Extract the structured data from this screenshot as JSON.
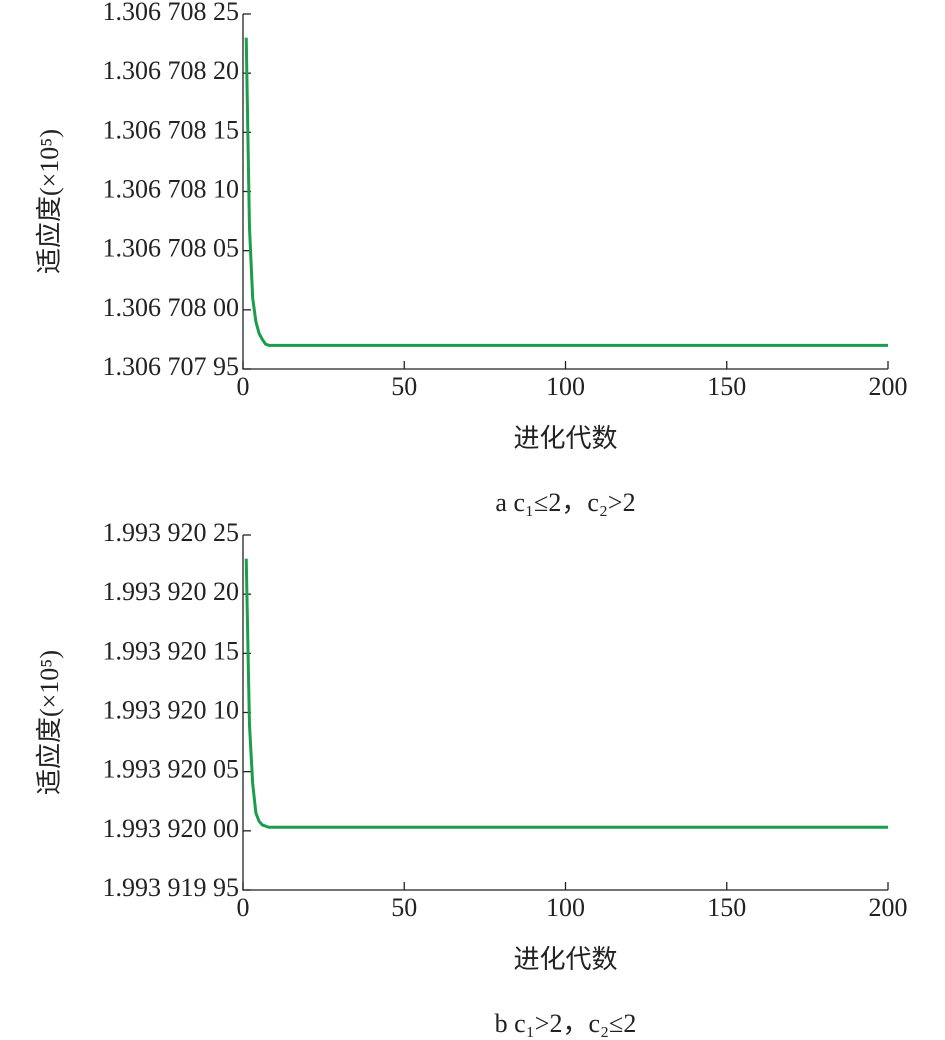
{
  "chart_data": [
    {
      "type": "line",
      "ylabel": "适应度(×10⁵)",
      "xlabel": "进化代数",
      "caption": "a c₁≤2，c₂>2",
      "x": [
        1,
        2,
        3,
        4,
        5,
        6,
        7,
        8,
        10,
        200
      ],
      "series": [
        {
          "color": "#1a9e4a",
          "values": [
            1.30670823,
            1.30670807,
            1.30670801,
            1.30670799,
            1.30670798,
            1.306707975,
            1.306707971,
            1.30670797,
            1.30670797,
            1.30670797
          ]
        }
      ],
      "xlim": [
        0,
        200
      ],
      "xticks": [
        0,
        50,
        100,
        150,
        200
      ],
      "ylim": [
        1.30670795,
        1.30670825
      ],
      "yticks": [
        {
          "value": 1.30670795,
          "label": "1.306 707 95"
        },
        {
          "value": 1.306708,
          "label": "1.306 708 00"
        },
        {
          "value": 1.30670805,
          "label": "1.306 708 05"
        },
        {
          "value": 1.3067081,
          "label": "1.306 708 10"
        },
        {
          "value": 1.30670815,
          "label": "1.306 708 15"
        },
        {
          "value": 1.3067082,
          "label": "1.306 708 20"
        },
        {
          "value": 1.30670825,
          "label": "1.306 708 25"
        }
      ]
    },
    {
      "type": "line",
      "ylabel": "适应度(×10⁵)",
      "xlabel": "进化代数",
      "caption": "b c₁>2，c₂≤2",
      "x": [
        1,
        2,
        3,
        4,
        5,
        6,
        7,
        8,
        10,
        200
      ],
      "series": [
        {
          "color": "#1a9e4a",
          "values": [
            1.99392023,
            1.99392009,
            1.99392004,
            1.993920015,
            1.993920008,
            1.993920005,
            1.993920004,
            1.993920003,
            1.993920003,
            1.993920003
          ]
        }
      ],
      "xlim": [
        0,
        200
      ],
      "xticks": [
        0,
        50,
        100,
        150,
        200
      ],
      "ylim": [
        1.99391995,
        1.99392025
      ],
      "yticks": [
        {
          "value": 1.99391995,
          "label": "1.993 919 95"
        },
        {
          "value": 1.99392,
          "label": "1.993 920 00"
        },
        {
          "value": 1.99392005,
          "label": "1.993 920 05"
        },
        {
          "value": 1.9939201,
          "label": "1.993 920 10"
        },
        {
          "value": 1.99392015,
          "label": "1.993 920 15"
        },
        {
          "value": 1.9939202,
          "label": "1.993 920 20"
        },
        {
          "value": 1.99392025,
          "label": "1.993 920 25"
        }
      ]
    }
  ]
}
